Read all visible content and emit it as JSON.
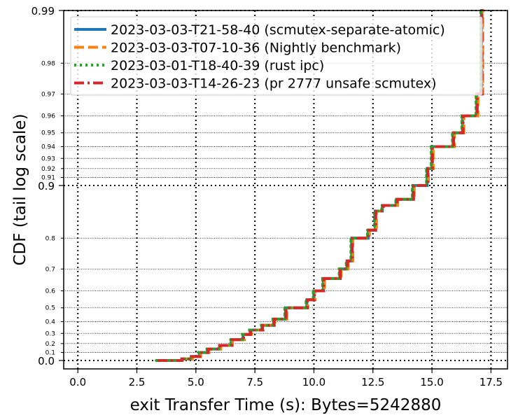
{
  "chart_data": {
    "type": "line",
    "title": "",
    "xlabel": "exit Transfer Time (s): Bytes=5242880",
    "ylabel": "CDF (tail log scale)",
    "xlim": [
      -0.6,
      18.2
    ],
    "x_ticks": [
      0.0,
      2.5,
      5.0,
      7.5,
      10.0,
      12.5,
      15.0,
      17.5
    ],
    "x_tick_labels": [
      "0.0",
      "2.5",
      "5.0",
      "7.5",
      "10.0",
      "12.5",
      "15.0",
      "17.5"
    ],
    "y_scale": "tail-log",
    "y_major_ticks": [
      0.0,
      0.9,
      0.99
    ],
    "y_major_labels": [
      "0.0",
      "0.9",
      "0.99"
    ],
    "y_minor_ticks": [
      0.1,
      0.2,
      0.3,
      0.4,
      0.5,
      0.6,
      0.7,
      0.8,
      0.91,
      0.92,
      0.93,
      0.94,
      0.95,
      0.96,
      0.97,
      0.98
    ],
    "y_minor_labels": [
      "0.1",
      "0.2",
      "0.3",
      "0.4",
      "0.5",
      "0.6",
      "0.7",
      "0.8",
      "0.91",
      "0.92",
      "0.93",
      "0.94",
      "0.95",
      "0.96",
      "0.97",
      "0.98"
    ],
    "grid": true,
    "legend_position": "top-left",
    "step_x": [
      3.35,
      4.4,
      4.8,
      5.15,
      5.5,
      6.0,
      6.5,
      7.0,
      7.3,
      7.8,
      8.3,
      8.8,
      9.7,
      10.0,
      10.4,
      11.1,
      11.4,
      11.6,
      12.3,
      12.6,
      12.9,
      13.5,
      14.2,
      14.8,
      15.0,
      15.9,
      16.3,
      16.9,
      17.1
    ],
    "step_y": [
      0.0,
      0.02,
      0.05,
      0.1,
      0.14,
      0.18,
      0.24,
      0.29,
      0.33,
      0.37,
      0.42,
      0.5,
      0.55,
      0.6,
      0.66,
      0.7,
      0.73,
      0.8,
      0.82,
      0.86,
      0.87,
      0.88,
      0.9,
      0.92,
      0.94,
      0.95,
      0.96,
      0.97,
      0.99
    ],
    "series": [
      {
        "name": "2023-03-03-T21-58-40 (scmutex-separate-atomic)",
        "color": "#1f77b4",
        "style": "solid",
        "x_offset": 0.0
      },
      {
        "name": "2023-03-03-T07-10-36 (Nightly benchmark)",
        "color": "#ff7f0e",
        "style": "dashed",
        "x_offset": 0.05
      },
      {
        "name": "2023-03-01-T18-40-39 (rust ipc)",
        "color": "#2ca02c",
        "style": "dotted",
        "x_offset": -0.03
      },
      {
        "name": "2023-03-03-T14-26-23 (pr 2777 unsafe scmutex)",
        "color": "#d62728",
        "style": "dashdot",
        "x_offset": 0.02
      }
    ]
  }
}
